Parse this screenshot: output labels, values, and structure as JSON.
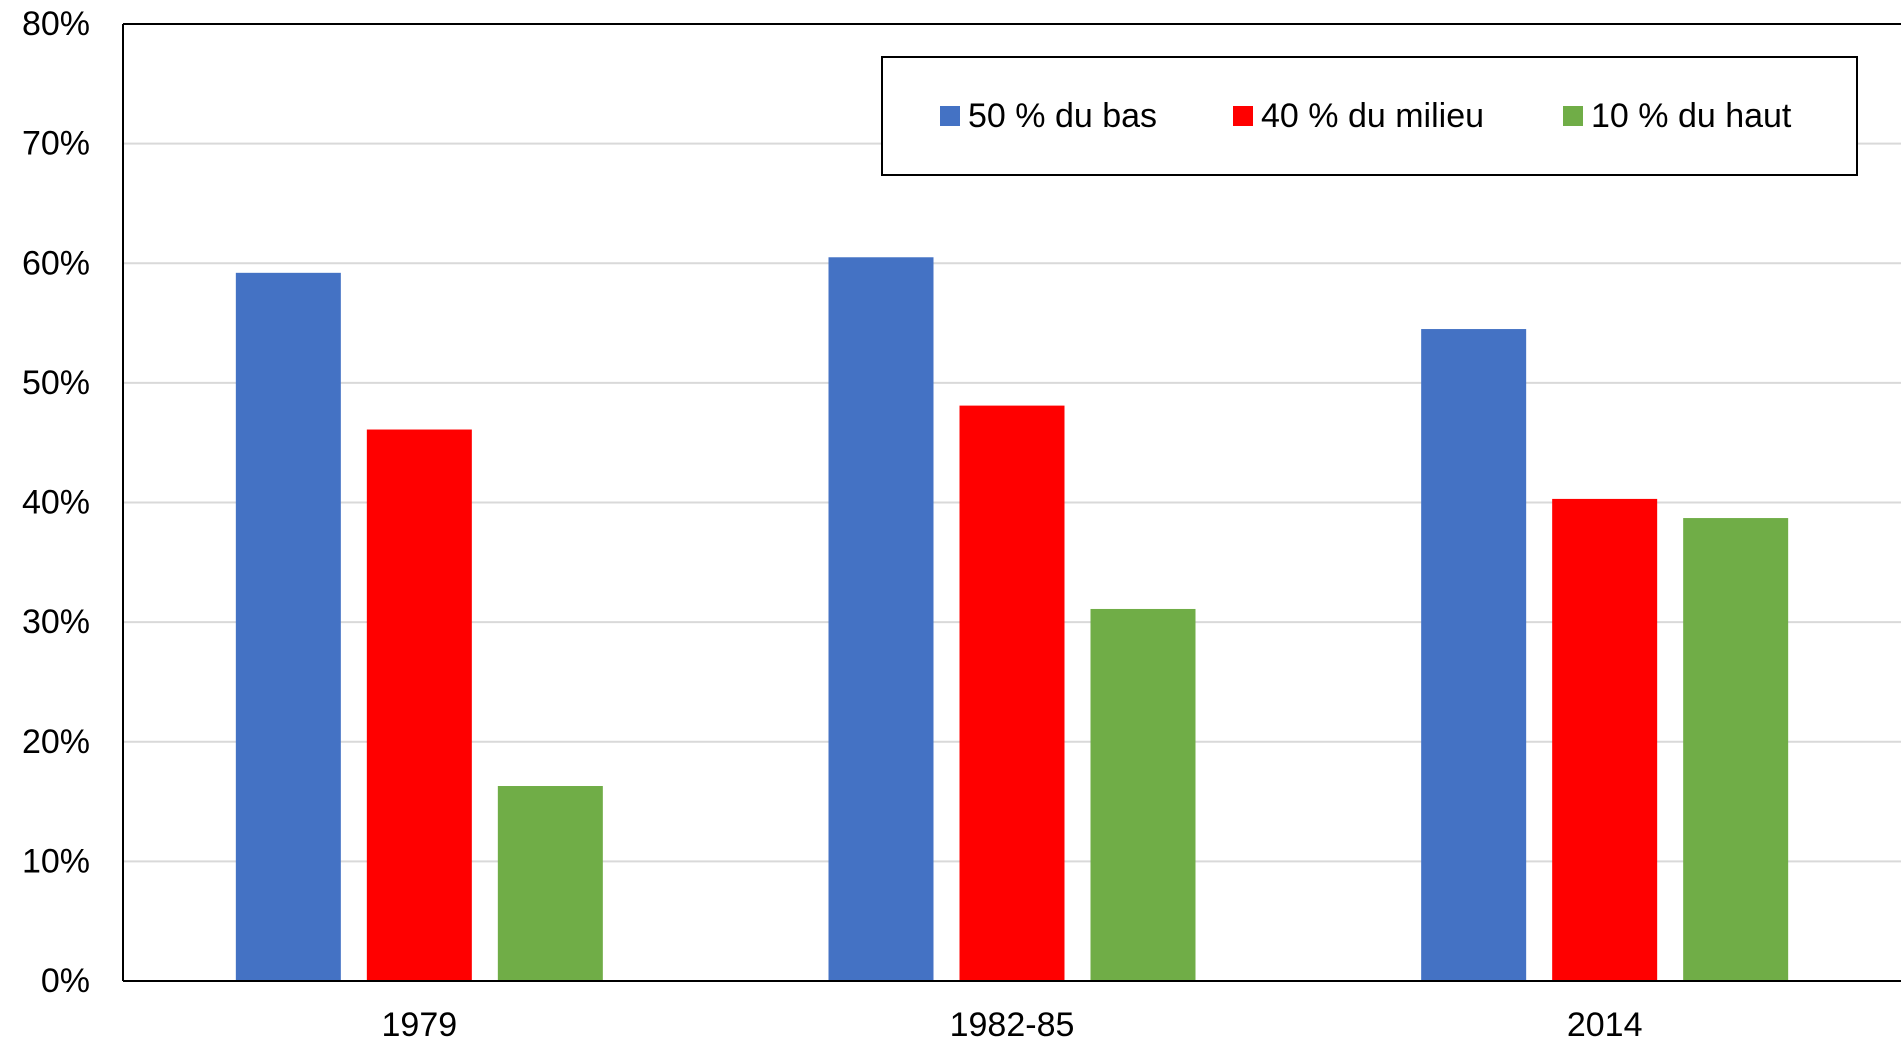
{
  "chart_data": {
    "type": "bar",
    "title": "",
    "xlabel": "",
    "ylabel": "",
    "categories": [
      "1979",
      "1982-85",
      "2014"
    ],
    "series": [
      {
        "name": "50 % du bas",
        "color": "#4472C4",
        "values": [
          59.2,
          60.5,
          54.5
        ]
      },
      {
        "name": "40 % du milieu",
        "color": "#FF0000",
        "values": [
          46.1,
          48.1,
          40.3
        ]
      },
      {
        "name": "10 % du haut",
        "color": "#70AD47",
        "values": [
          16.3,
          31.1,
          38.7
        ]
      }
    ],
    "ylim": [
      0,
      80
    ],
    "yticks": [
      0,
      10,
      20,
      30,
      40,
      50,
      60,
      70,
      80
    ],
    "ytick_labels": [
      "0%",
      "10%",
      "20%",
      "30%",
      "40%",
      "50%",
      "60%",
      "70%",
      "80%"
    ],
    "grid": true,
    "legend_position": "top-right"
  }
}
